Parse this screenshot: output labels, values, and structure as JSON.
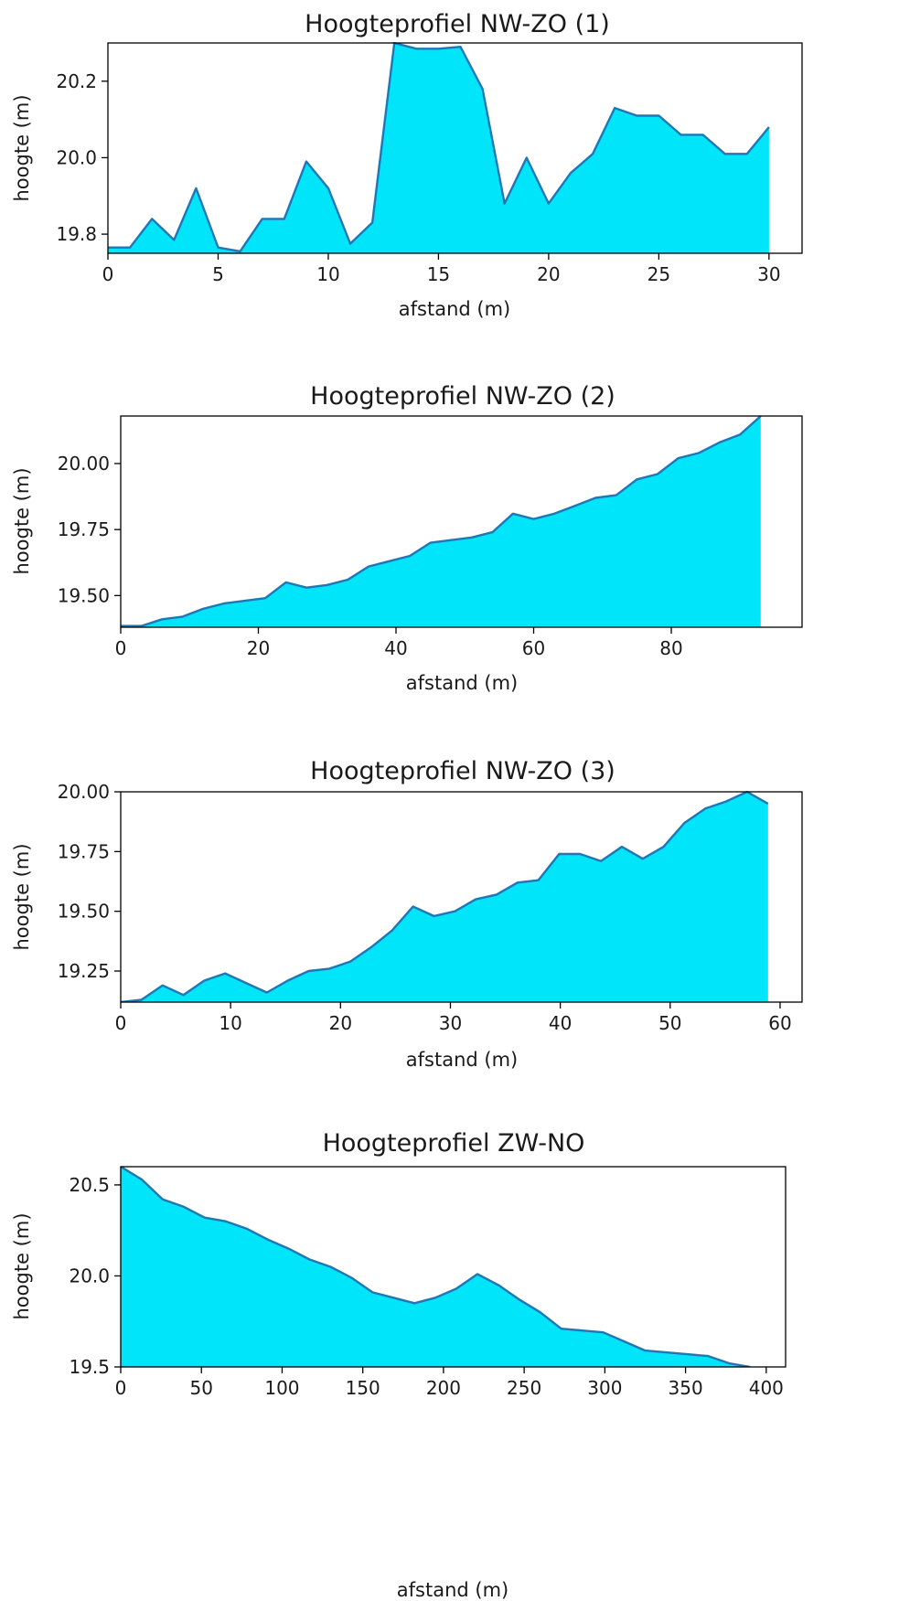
{
  "colors": {
    "fill": "#00e5fa",
    "line": "#1f77b4"
  },
  "chart_data": [
    {
      "type": "area",
      "title": "Hoogteprofiel NW-ZO (1)",
      "xlabel": "afstand (m)",
      "ylabel": "hoogte (m)",
      "xlim": [
        0,
        31.5
      ],
      "ylim": [
        19.75,
        20.3
      ],
      "xticks": [
        0,
        5,
        10,
        15,
        20,
        25,
        30
      ],
      "xtick_labels": [
        "0",
        "5",
        "10",
        "15",
        "20",
        "25",
        "30"
      ],
      "yticks": [
        19.8,
        20.0,
        20.2
      ],
      "ytick_labels": [
        "19.8",
        "20.0",
        "20.2"
      ],
      "grid": false,
      "x": [
        0,
        1,
        2,
        3,
        4,
        5,
        6,
        7,
        8,
        9,
        10,
        11,
        12,
        13,
        14,
        15,
        16,
        17,
        18,
        19,
        20,
        21,
        22,
        23,
        24,
        25,
        26,
        27,
        28,
        29,
        30
      ],
      "y": [
        19.765,
        19.765,
        19.84,
        19.785,
        19.92,
        19.765,
        19.755,
        19.84,
        19.84,
        19.99,
        19.92,
        19.775,
        19.83,
        20.3,
        20.285,
        20.285,
        20.29,
        20.18,
        19.88,
        20.0,
        19.88,
        19.96,
        20.01,
        20.13,
        20.11,
        20.11,
        20.06,
        20.06,
        20.01,
        20.01,
        20.08
      ]
    },
    {
      "type": "area",
      "title": "Hoogteprofiel NW-ZO (2)",
      "xlabel": "afstand (m)",
      "ylabel": "hoogte (m)",
      "xlim": [
        0,
        99
      ],
      "ylim": [
        19.38,
        20.18
      ],
      "xticks": [
        0,
        20,
        40,
        60,
        80
      ],
      "xtick_labels": [
        "0",
        "20",
        "40",
        "60",
        "80"
      ],
      "yticks": [
        19.5,
        19.75,
        20.0
      ],
      "ytick_labels": [
        "19.50",
        "19.75",
        "20.00"
      ],
      "grid": false,
      "x": [
        0,
        3,
        6,
        9,
        12,
        15,
        18,
        21,
        24,
        27,
        30,
        33,
        36,
        39,
        42,
        45,
        48,
        51,
        54,
        57,
        60,
        63,
        66,
        69,
        72,
        75,
        78,
        81,
        84,
        87,
        90,
        93
      ],
      "y": [
        19.385,
        19.385,
        19.41,
        19.42,
        19.45,
        19.47,
        19.48,
        19.49,
        19.55,
        19.53,
        19.54,
        19.56,
        19.61,
        19.63,
        19.65,
        19.7,
        19.71,
        19.72,
        19.74,
        19.81,
        19.79,
        19.81,
        19.84,
        19.87,
        19.88,
        19.94,
        19.96,
        20.02,
        20.04,
        20.08,
        20.11,
        20.18
      ]
    },
    {
      "type": "area",
      "title": "Hoogteprofiel NW-ZO (3)",
      "xlabel": "afstand (m)",
      "ylabel": "hoogte (m)",
      "xlim": [
        0,
        62
      ],
      "ylim": [
        19.12,
        20.0
      ],
      "xticks": [
        0,
        10,
        20,
        30,
        40,
        50,
        60
      ],
      "xtick_labels": [
        "0",
        "10",
        "20",
        "30",
        "40",
        "50",
        "60"
      ],
      "yticks": [
        19.25,
        19.5,
        19.75,
        20.0
      ],
      "ytick_labels": [
        "19.25",
        "19.50",
        "19.75",
        "20.00"
      ],
      "grid": false,
      "x": [
        0,
        1.9,
        3.8,
        5.7,
        7.6,
        9.5,
        11.4,
        13.3,
        15.2,
        17.1,
        19,
        20.9,
        22.8,
        24.7,
        26.6,
        28.5,
        30.4,
        32.3,
        34.2,
        36.1,
        38,
        39.9,
        41.8,
        43.7,
        45.6,
        47.5,
        49.4,
        51.3,
        53.2,
        55.1,
        57,
        58.9
      ],
      "y": [
        19.12,
        19.13,
        19.19,
        19.15,
        19.21,
        19.24,
        19.2,
        19.16,
        19.21,
        19.25,
        19.26,
        19.29,
        19.35,
        19.42,
        19.52,
        19.48,
        19.5,
        19.55,
        19.57,
        19.62,
        19.63,
        19.74,
        19.74,
        19.71,
        19.77,
        19.72,
        19.77,
        19.87,
        19.93,
        19.96,
        20.0,
        19.95
      ]
    },
    {
      "type": "area",
      "title": "Hoogteprofiel ZW-NO",
      "xlabel": "afstand (m)",
      "ylabel": "hoogte (m)",
      "xlim": [
        0,
        412
      ],
      "ylim": [
        19.5,
        20.6
      ],
      "xticks": [
        0,
        50,
        100,
        150,
        200,
        250,
        300,
        350,
        400
      ],
      "xtick_labels": [
        "0",
        "50",
        "100",
        "150",
        "200",
        "250",
        "300",
        "350",
        "400"
      ],
      "yticks": [
        19.5,
        20.0,
        20.5
      ],
      "ytick_labels": [
        "19.5",
        "20.0",
        "20.5"
      ],
      "grid": false,
      "x": [
        0,
        13,
        26,
        39,
        52,
        65,
        78,
        91,
        104,
        117,
        130,
        143,
        156,
        169,
        182,
        195,
        208,
        221,
        234,
        247,
        260,
        273,
        286,
        299,
        312,
        325,
        338,
        351,
        364,
        377,
        390
      ],
      "y": [
        20.6,
        20.53,
        20.42,
        20.38,
        20.32,
        20.3,
        20.26,
        20.2,
        20.15,
        20.09,
        20.05,
        19.99,
        19.91,
        19.88,
        19.85,
        19.88,
        19.93,
        20.01,
        19.95,
        19.87,
        19.8,
        19.71,
        19.7,
        19.69,
        19.64,
        19.59,
        19.58,
        19.57,
        19.56,
        19.52,
        19.5
      ]
    }
  ]
}
